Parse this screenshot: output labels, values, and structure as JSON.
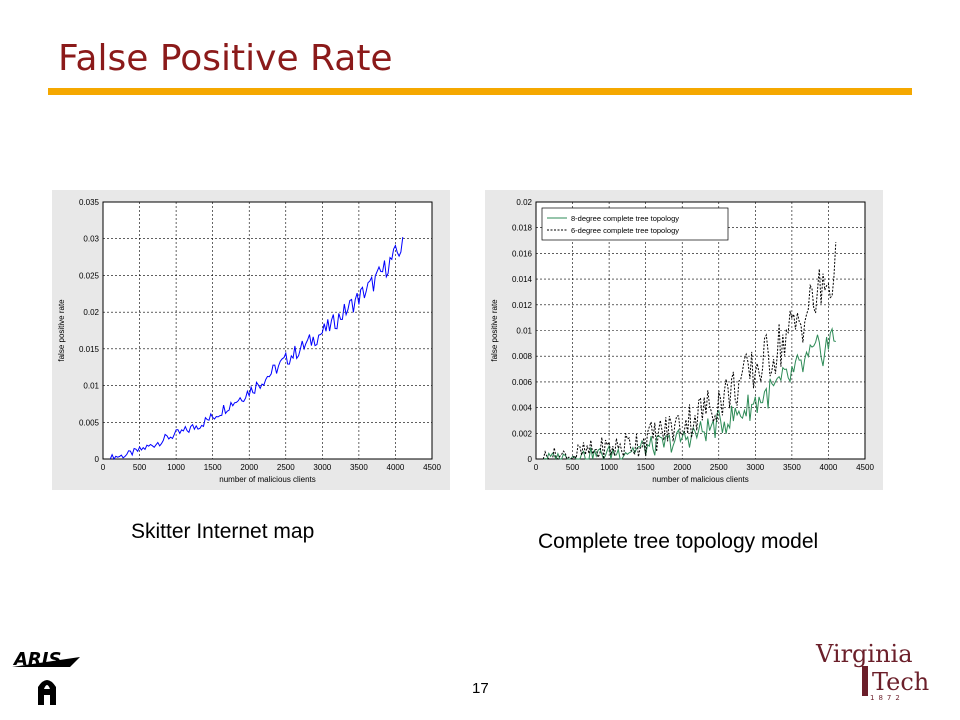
{
  "slide": {
    "title": "False Positive Rate",
    "page_number": "17",
    "caption_left": "Skitter Internet map",
    "caption_right": "Complete tree topology model",
    "accent_color": "#f5a800",
    "title_color": "#8b1a1a"
  },
  "logos": {
    "aris_text": "ARIS",
    "vt_line1": "Virginia",
    "vt_line2": "Tech",
    "vt_year": "1872",
    "vt_color": "#6b1f2a"
  },
  "chart_data": [
    {
      "type": "line",
      "title": "",
      "xlabel": "number of malicious clients",
      "ylabel": "false positive rate",
      "xlim": [
        0,
        4500
      ],
      "ylim": [
        0,
        0.035
      ],
      "xticks": [
        0,
        500,
        1000,
        1500,
        2000,
        2500,
        3000,
        3500,
        4000,
        4500
      ],
      "yticks": [
        0,
        0.005,
        0.01,
        0.015,
        0.02,
        0.025,
        0.03,
        0.035
      ],
      "ytick_labels": [
        "0",
        "0.005",
        "0.01",
        "0.015",
        "0.02",
        "0.025",
        "0.03",
        "0.035"
      ],
      "grid": true,
      "legend": null,
      "series": [
        {
          "color": "#0000ff",
          "style": "solid",
          "x": [
            100,
            300,
            500,
            700,
            900,
            1100,
            1300,
            1500,
            1700,
            1900,
            2100,
            2300,
            2500,
            2700,
            2900,
            3100,
            3300,
            3500,
            3700,
            3900,
            4100
          ],
          "y": [
            0.0002,
            0.0005,
            0.0012,
            0.002,
            0.003,
            0.0037,
            0.0046,
            0.0057,
            0.0072,
            0.0085,
            0.01,
            0.0117,
            0.0135,
            0.015,
            0.0165,
            0.018,
            0.02,
            0.022,
            0.024,
            0.0265,
            0.029
          ],
          "noise": 0.0015
        }
      ]
    },
    {
      "type": "line",
      "title": "",
      "xlabel": "number of malicious clients",
      "ylabel": "false positive rate",
      "xlim": [
        0,
        4500
      ],
      "ylim": [
        0,
        0.02
      ],
      "xticks": [
        0,
        500,
        1000,
        1500,
        2000,
        2500,
        3000,
        3500,
        4000,
        4500
      ],
      "yticks": [
        0,
        0.002,
        0.004,
        0.006,
        0.008,
        0.01,
        0.012,
        0.014,
        0.016,
        0.018,
        0.02
      ],
      "ytick_labels": [
        "0",
        "0.002",
        "0.004",
        "0.006",
        "0.008",
        "0.01",
        "0.012",
        "0.014",
        "0.016",
        "0.018",
        "0.02"
      ],
      "grid": true,
      "legend": "top-left",
      "series": [
        {
          "name": "8-degree complete tree topology",
          "color": "#2e8b57",
          "style": "solid",
          "x": [
            100,
            300,
            500,
            700,
            900,
            1100,
            1300,
            1500,
            1700,
            1900,
            2100,
            2300,
            2500,
            2700,
            2900,
            3100,
            3300,
            3500,
            3700,
            3900,
            4100
          ],
          "y": [
            0.0001,
            0.0001,
            0.0002,
            0.0003,
            0.0004,
            0.0005,
            0.0007,
            0.0009,
            0.0011,
            0.0014,
            0.0018,
            0.0022,
            0.0027,
            0.0033,
            0.004,
            0.0048,
            0.0056,
            0.0065,
            0.0075,
            0.0085,
            0.0095
          ],
          "noise": 0.0015
        },
        {
          "name": "6-degree complete tree topology",
          "color": "#000000",
          "style": "dashed",
          "x": [
            100,
            300,
            500,
            700,
            900,
            1100,
            1300,
            1500,
            1700,
            1900,
            2100,
            2300,
            2500,
            2700,
            2900,
            3100,
            3300,
            3500,
            3700,
            3900,
            4100
          ],
          "y": [
            0.0001,
            0.0002,
            0.0003,
            0.0005,
            0.0007,
            0.0009,
            0.0012,
            0.0015,
            0.002,
            0.0025,
            0.0031,
            0.0038,
            0.0046,
            0.0055,
            0.0065,
            0.0075,
            0.0087,
            0.01,
            0.0115,
            0.013,
            0.0145
          ],
          "noise": 0.0025
        }
      ]
    }
  ]
}
